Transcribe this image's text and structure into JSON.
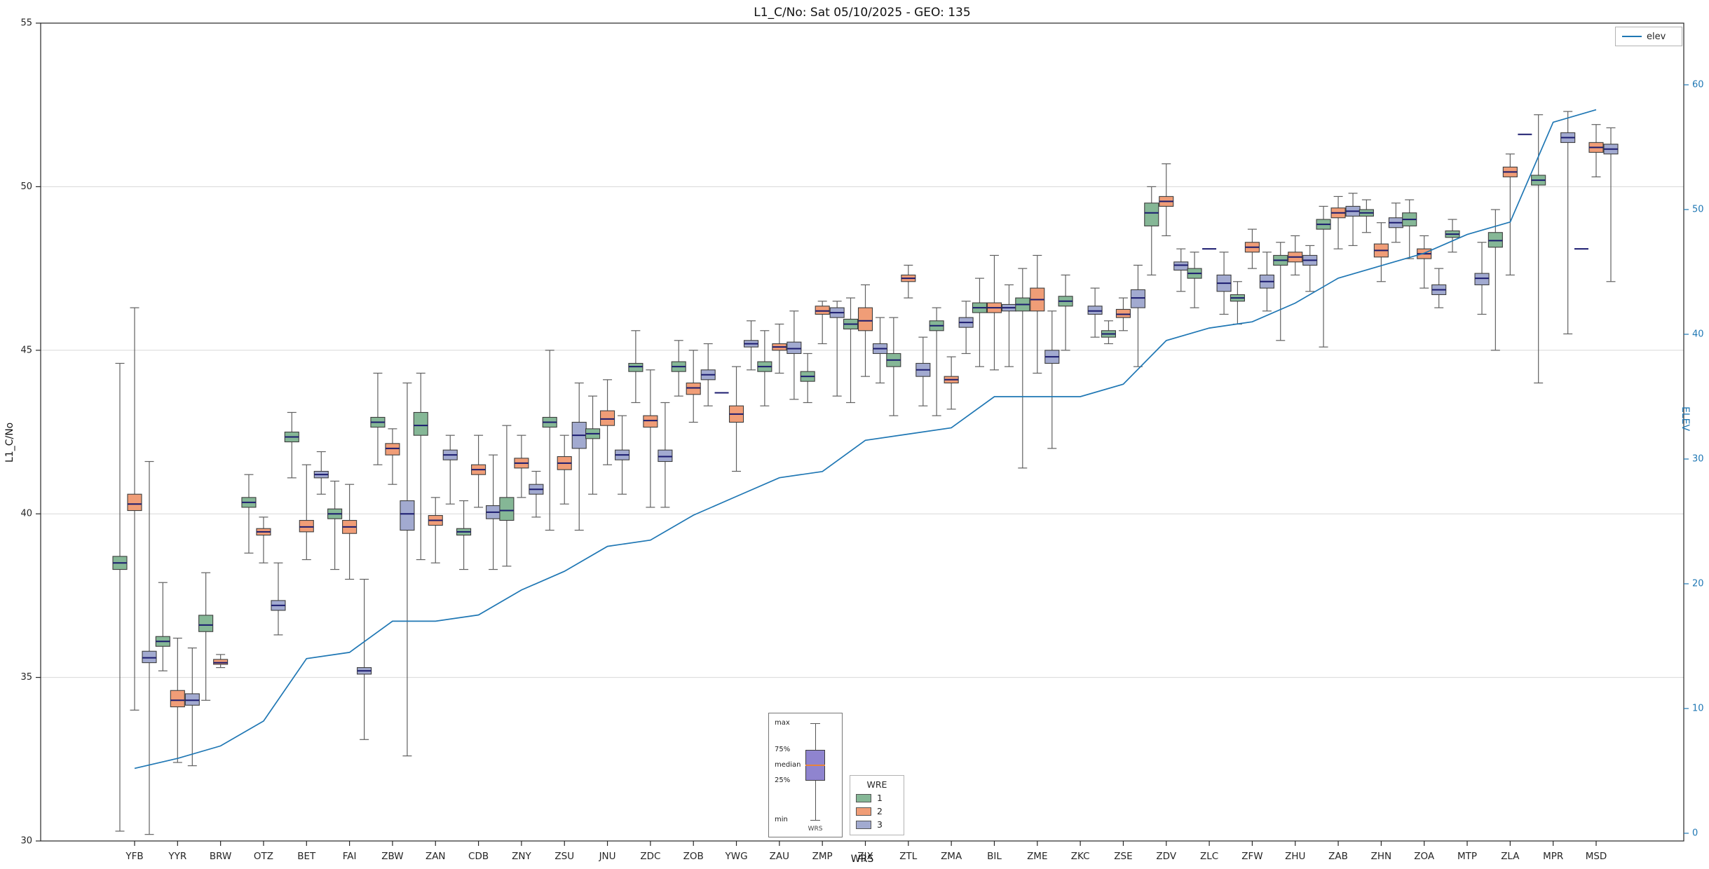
{
  "title": "L1_C/No: Sat 05/10/2025 - GEO: 135",
  "legend_elev": "elev",
  "wre_legend": {
    "title": "WRE",
    "entries": [
      {
        "label": "1",
        "color": "#85b796"
      },
      {
        "label": "2",
        "color": "#f09d77"
      },
      {
        "label": "3",
        "color": "#a2aad0"
      }
    ]
  },
  "annotation": {
    "labels": [
      "max",
      "75%",
      "median",
      "25%",
      "min"
    ],
    "bottom_label": "WRS"
  },
  "chart_data": {
    "type": "boxplot+line",
    "title": "L1_C/No: Sat 05/10/2025 - GEO: 135",
    "xlabel": "WRS",
    "ylabel_left": "L1_C/No",
    "ylabel_right": "ELEV",
    "ylim_left": [
      30,
      55
    ],
    "yticks_left": [
      30,
      35,
      40,
      45,
      50,
      55
    ],
    "ylim_right": [
      0,
      60
    ],
    "yticks_right": [
      0,
      10,
      20,
      30,
      40,
      50,
      60
    ],
    "grid": "horizontal",
    "legend_position": "upper-right",
    "groups": [
      {
        "name": "1",
        "color": "#85b796"
      },
      {
        "name": "2",
        "color": "#f09d77"
      },
      {
        "name": "3",
        "color": "#a2aad0"
      }
    ],
    "categories": [
      "YFB",
      "YYR",
      "BRW",
      "OTZ",
      "BET",
      "FAI",
      "ZBW",
      "ZAN",
      "CDB",
      "ZNY",
      "ZSU",
      "JNU",
      "ZDC",
      "ZOB",
      "YWG",
      "ZAU",
      "ZMP",
      "ZJX",
      "ZTL",
      "ZMA",
      "BIL",
      "ZME",
      "ZKC",
      "ZSE",
      "ZDV",
      "ZLC",
      "ZFW",
      "ZHU",
      "ZAB",
      "ZHN",
      "ZOA",
      "MTP",
      "ZLA",
      "MPR",
      "MSD"
    ],
    "boxes": [
      [
        [
          30.3,
          38.3,
          38.5,
          38.7,
          44.6
        ],
        [
          34.0,
          40.1,
          40.3,
          40.6,
          46.3
        ],
        [
          30.2,
          35.45,
          35.6,
          35.8,
          41.6
        ]
      ],
      [
        [
          35.2,
          35.95,
          36.1,
          36.25,
          37.9
        ],
        [
          32.4,
          34.1,
          34.3,
          34.6,
          36.2
        ],
        [
          32.3,
          34.15,
          34.3,
          34.5,
          35.9
        ]
      ],
      [
        [
          34.3,
          36.4,
          36.6,
          36.9,
          38.2
        ],
        [
          35.3,
          35.4,
          35.45,
          35.55,
          35.7
        ],
        null
      ],
      [
        [
          38.8,
          40.2,
          40.35,
          40.5,
          41.2
        ],
        [
          38.5,
          39.35,
          39.45,
          39.55,
          39.9
        ],
        [
          36.3,
          37.05,
          37.2,
          37.35,
          38.5
        ]
      ],
      [
        [
          41.1,
          42.2,
          42.35,
          42.5,
          43.1
        ],
        [
          38.6,
          39.45,
          39.6,
          39.8,
          41.5
        ],
        [
          40.6,
          41.1,
          41.2,
          41.3,
          41.9
        ]
      ],
      [
        [
          38.3,
          39.85,
          40.0,
          40.15,
          41.0
        ],
        [
          38.0,
          39.4,
          39.6,
          39.8,
          40.9
        ],
        [
          33.1,
          35.1,
          35.2,
          35.3,
          38.0
        ]
      ],
      [
        [
          41.5,
          42.65,
          42.8,
          42.95,
          44.3
        ],
        [
          40.9,
          41.8,
          42.0,
          42.15,
          42.6
        ],
        [
          32.6,
          39.5,
          40.0,
          40.4,
          44.0
        ]
      ],
      [
        [
          38.6,
          42.4,
          42.7,
          43.1,
          44.3
        ],
        [
          38.5,
          39.65,
          39.8,
          39.95,
          40.5
        ],
        [
          40.3,
          41.65,
          41.8,
          41.95,
          42.4
        ]
      ],
      [
        [
          38.3,
          39.35,
          39.45,
          39.55,
          40.4
        ],
        [
          40.2,
          41.2,
          41.35,
          41.5,
          42.4
        ],
        [
          38.3,
          39.85,
          40.05,
          40.25,
          41.8
        ]
      ],
      [
        [
          38.4,
          39.8,
          40.1,
          40.5,
          42.7
        ],
        [
          40.5,
          41.4,
          41.55,
          41.7,
          42.4
        ],
        [
          39.9,
          40.6,
          40.75,
          40.9,
          41.3
        ]
      ],
      [
        [
          39.5,
          42.65,
          42.8,
          42.95,
          45.0
        ],
        [
          40.3,
          41.35,
          41.55,
          41.75,
          42.4
        ],
        [
          39.5,
          42.0,
          42.4,
          42.8,
          44.0
        ]
      ],
      [
        [
          40.6,
          42.3,
          42.45,
          42.6,
          43.6
        ],
        [
          41.5,
          42.7,
          42.9,
          43.15,
          44.1
        ],
        [
          40.6,
          41.65,
          41.8,
          41.95,
          43.0
        ]
      ],
      [
        [
          43.4,
          44.35,
          44.5,
          44.6,
          45.6
        ],
        [
          40.2,
          42.65,
          42.85,
          43.0,
          44.4
        ],
        [
          40.2,
          41.6,
          41.75,
          41.95,
          43.4
        ]
      ],
      [
        [
          43.6,
          44.35,
          44.5,
          44.65,
          45.3
        ],
        [
          42.8,
          43.65,
          43.85,
          44.0,
          45.0
        ],
        [
          43.3,
          44.1,
          44.25,
          44.4,
          45.2
        ]
      ],
      [
        [
          43.7,
          43.7,
          43.7,
          43.7,
          43.7
        ],
        [
          41.3,
          42.8,
          43.05,
          43.3,
          44.5
        ],
        [
          44.4,
          45.1,
          45.2,
          45.3,
          45.9
        ]
      ],
      [
        [
          43.3,
          44.35,
          44.5,
          44.65,
          45.6
        ],
        [
          44.3,
          45.0,
          45.1,
          45.2,
          45.8
        ],
        [
          43.5,
          44.9,
          45.05,
          45.25,
          46.2
        ]
      ],
      [
        [
          43.4,
          44.05,
          44.2,
          44.35,
          44.9
        ],
        [
          45.2,
          46.1,
          46.2,
          46.35,
          46.5
        ],
        [
          43.6,
          46.0,
          46.15,
          46.3,
          46.5
        ]
      ],
      [
        [
          43.4,
          45.65,
          45.8,
          45.95,
          46.6
        ],
        [
          44.2,
          45.6,
          45.9,
          46.3,
          47.0
        ],
        [
          44.0,
          44.9,
          45.05,
          45.2,
          46.0
        ]
      ],
      [
        [
          43.0,
          44.5,
          44.7,
          44.9,
          46.0
        ],
        [
          46.6,
          47.1,
          47.2,
          47.3,
          47.6
        ],
        [
          43.3,
          44.2,
          44.4,
          44.6,
          45.4
        ]
      ],
      [
        [
          43.0,
          45.6,
          45.75,
          45.9,
          46.3
        ],
        [
          43.2,
          44.0,
          44.1,
          44.2,
          44.8
        ],
        [
          44.9,
          45.7,
          45.85,
          46.0,
          46.5
        ]
      ],
      [
        [
          44.5,
          46.15,
          46.3,
          46.45,
          47.2
        ],
        [
          44.4,
          46.15,
          46.3,
          46.45,
          47.9
        ],
        [
          44.5,
          46.2,
          46.3,
          46.4,
          47.0
        ]
      ],
      [
        [
          41.4,
          46.2,
          46.4,
          46.6,
          47.5
        ],
        [
          44.3,
          46.2,
          46.55,
          46.9,
          47.9
        ],
        [
          42.0,
          44.6,
          44.8,
          45.0,
          46.2
        ]
      ],
      [
        [
          45.0,
          46.35,
          46.5,
          46.65,
          47.3
        ],
        null,
        [
          45.4,
          46.1,
          46.2,
          46.35,
          46.9
        ]
      ],
      [
        [
          45.2,
          45.4,
          45.5,
          45.6,
          45.9
        ],
        [
          45.6,
          46.0,
          46.1,
          46.25,
          46.6
        ],
        [
          44.5,
          46.3,
          46.6,
          46.85,
          47.6
        ]
      ],
      [
        [
          47.3,
          48.8,
          49.2,
          49.5,
          50.0
        ],
        [
          48.5,
          49.4,
          49.55,
          49.7,
          50.7
        ],
        [
          46.8,
          47.45,
          47.6,
          47.7,
          48.1
        ]
      ],
      [
        [
          46.3,
          47.2,
          47.35,
          47.5,
          48.0
        ],
        [
          48.1,
          48.1,
          48.1,
          48.1,
          48.1
        ],
        [
          46.1,
          46.8,
          47.05,
          47.3,
          48.0
        ]
      ],
      [
        [
          45.8,
          46.5,
          46.6,
          46.7,
          47.1
        ],
        [
          47.5,
          48.0,
          48.15,
          48.3,
          48.7
        ],
        [
          46.2,
          46.9,
          47.1,
          47.3,
          48.0
        ]
      ],
      [
        [
          45.3,
          47.6,
          47.75,
          47.9,
          48.3
        ],
        [
          47.3,
          47.7,
          47.85,
          48.0,
          48.5
        ],
        [
          46.8,
          47.6,
          47.75,
          47.9,
          48.2
        ]
      ],
      [
        [
          45.1,
          48.7,
          48.85,
          49.0,
          49.4
        ],
        [
          48.1,
          49.05,
          49.2,
          49.35,
          49.7
        ],
        [
          48.2,
          49.1,
          49.25,
          49.4,
          49.8
        ]
      ],
      [
        [
          48.6,
          49.1,
          49.2,
          49.3,
          49.6
        ],
        [
          47.1,
          47.85,
          48.05,
          48.25,
          48.9
        ],
        [
          48.3,
          48.75,
          48.9,
          49.05,
          49.5
        ]
      ],
      [
        [
          47.8,
          48.8,
          49.0,
          49.2,
          49.6
        ],
        [
          46.9,
          47.8,
          47.95,
          48.1,
          48.5
        ],
        [
          46.3,
          46.7,
          46.85,
          47.0,
          47.5
        ]
      ],
      [
        [
          48.0,
          48.45,
          48.55,
          48.65,
          49.0
        ],
        null,
        [
          46.1,
          47.0,
          47.2,
          47.35,
          48.3
        ]
      ],
      [
        [
          45.0,
          48.15,
          48.35,
          48.6,
          49.3
        ],
        [
          47.3,
          50.3,
          50.45,
          50.6,
          51.0
        ],
        [
          51.6,
          51.6,
          51.6,
          51.6,
          51.6
        ]
      ],
      [
        [
          44.0,
          50.05,
          50.2,
          50.35,
          52.2
        ],
        null,
        [
          45.5,
          51.35,
          51.5,
          51.65,
          52.3
        ]
      ],
      [
        [
          48.1,
          48.1,
          48.1,
          48.1,
          48.1
        ],
        [
          50.3,
          51.05,
          51.2,
          51.35,
          51.9
        ],
        [
          47.1,
          51.0,
          51.15,
          51.3,
          51.8
        ]
      ]
    ],
    "elev_series": {
      "name": "elev",
      "color": "#1f77b4",
      "values": [
        5.2,
        6,
        7,
        9,
        14,
        14.5,
        17,
        17,
        17.5,
        19.5,
        21,
        23,
        23.5,
        25.5,
        27,
        28.5,
        29,
        31.5,
        32,
        32.5,
        35,
        35,
        35,
        36,
        39.5,
        40.5,
        41,
        42.5,
        44.5,
        45.5,
        46.5,
        48,
        49,
        57,
        58
      ]
    },
    "style": {
      "median_color": "#1b1b6f",
      "box_edge_color": "#3d3d3d",
      "whisker_color": "#616161",
      "grid_color": "#d8d8d8",
      "axis_color": "#262626",
      "right_axis_color": "#1f77b4"
    }
  }
}
